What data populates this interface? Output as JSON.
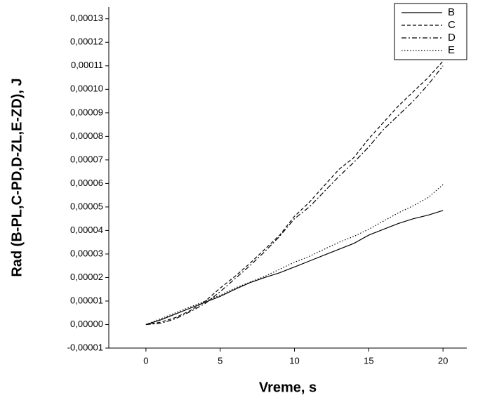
{
  "chart_data": {
    "type": "line",
    "xlabel": "Vreme, s",
    "ylabel": "Rad (B-PL,C-PD,D-ZL,E-ZD), J",
    "x": [
      0,
      1,
      2,
      3,
      4,
      5,
      6,
      7,
      8,
      9,
      10,
      11,
      12,
      13,
      14,
      15,
      16,
      17,
      18,
      19,
      20
    ],
    "xlim": [
      -2.5,
      21.6
    ],
    "xticks": [
      0,
      5,
      10,
      15,
      20
    ],
    "ylim": [
      -1e-05,
      0.000135
    ],
    "yticks": [
      {
        "value": -1e-05,
        "label": "-0,00001"
      },
      {
        "value": 0,
        "label": "0,00000"
      },
      {
        "value": 1e-05,
        "label": "0,00001"
      },
      {
        "value": 2e-05,
        "label": "0,00002"
      },
      {
        "value": 3e-05,
        "label": "0,00003"
      },
      {
        "value": 4e-05,
        "label": "0,00004"
      },
      {
        "value": 5e-05,
        "label": "0,00005"
      },
      {
        "value": 6e-05,
        "label": "0,00006"
      },
      {
        "value": 7e-05,
        "label": "0,00007"
      },
      {
        "value": 8e-05,
        "label": "0,00008"
      },
      {
        "value": 9e-05,
        "label": "0,00009"
      },
      {
        "value": 0.0001,
        "label": "0,00010"
      },
      {
        "value": 0.00011,
        "label": "0,00011"
      },
      {
        "value": 0.00012,
        "label": "0,00012"
      },
      {
        "value": 0.00013,
        "label": "0,00013"
      }
    ],
    "legend": "top-right",
    "series": [
      {
        "name": "B",
        "color": "#000000",
        "dash": "solid",
        "values": [
          0,
          2e-06,
          4.5e-06,
          7e-06,
          9.5e-06,
          1.2e-05,
          1.5e-05,
          1.78e-05,
          2e-05,
          2.2e-05,
          2.45e-05,
          2.7e-05,
          2.95e-05,
          3.2e-05,
          3.45e-05,
          3.8e-05,
          4.05e-05,
          4.3e-05,
          4.5e-05,
          4.65e-05,
          4.85e-05
        ]
      },
      {
        "name": "C",
        "color": "#000000",
        "dash": "dashed",
        "values": [
          0,
          1e-06,
          3e-06,
          6e-06,
          1e-05,
          1.55e-05,
          2.05e-05,
          2.6e-05,
          3.2e-05,
          3.8e-05,
          4.6e-05,
          5.2e-05,
          5.9e-05,
          6.6e-05,
          7.1e-05,
          7.9e-05,
          8.6e-05,
          9.3e-05,
          9.9e-05,
          0.000105,
          0.000112
        ]
      },
      {
        "name": "D",
        "color": "#000000",
        "dash": "dashdot",
        "values": [
          0,
          5e-07,
          2.5e-06,
          5.5e-06,
          9e-06,
          1.4e-05,
          1.95e-05,
          2.5e-05,
          3.1e-05,
          3.75e-05,
          4.5e-05,
          5e-05,
          5.65e-05,
          6.3e-05,
          6.9e-05,
          7.55e-05,
          8.3e-05,
          8.9e-05,
          9.5e-05,
          0.000102,
          0.00011
        ]
      },
      {
        "name": "E",
        "color": "#000000",
        "dash": "dotted",
        "values": [
          0,
          2.5e-06,
          5e-06,
          7.5e-06,
          1e-05,
          1.25e-05,
          1.55e-05,
          1.8e-05,
          2.05e-05,
          2.35e-05,
          2.65e-05,
          2.9e-05,
          3.2e-05,
          3.5e-05,
          3.75e-05,
          4.05e-05,
          4.4e-05,
          4.75e-05,
          5.05e-05,
          5.4e-05,
          5.95e-05
        ]
      }
    ]
  }
}
